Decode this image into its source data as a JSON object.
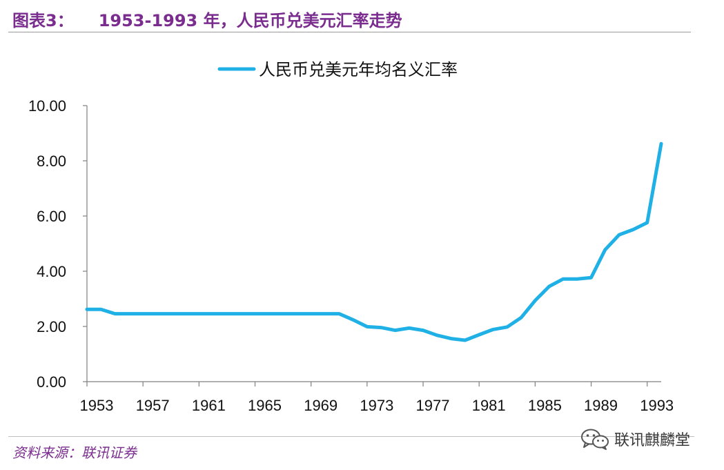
{
  "figure": {
    "label": "图表3：",
    "title": "1953-1993 年，人民币兑美元汇率走势"
  },
  "source": "资料来源：联讯证券",
  "watermark": {
    "icon": "wechat-icon",
    "text": "联讯麒麟堂"
  },
  "colors": {
    "title": "#7a2c8f",
    "series": "#1fb0e6",
    "axis": "#7f7f7f"
  },
  "chart_data": {
    "type": "line",
    "title": "",
    "xlabel": "",
    "ylabel": "",
    "legend_position": "top",
    "grid": false,
    "xlim": [
      1953,
      1994
    ],
    "ylim": [
      0,
      10
    ],
    "x_ticks": [
      "1953",
      "1957",
      "1961",
      "1965",
      "1969",
      "1973",
      "1977",
      "1981",
      "1985",
      "1989",
      "1993"
    ],
    "y_ticks": [
      "0.00",
      "2.00",
      "4.00",
      "6.00",
      "8.00",
      "10.00"
    ],
    "series": [
      {
        "name": "人民币兑美元年均名义汇率",
        "x": [
          1953,
          1954,
          1955,
          1956,
          1957,
          1958,
          1959,
          1960,
          1961,
          1962,
          1963,
          1964,
          1965,
          1966,
          1967,
          1968,
          1969,
          1970,
          1971,
          1972,
          1973,
          1974,
          1975,
          1976,
          1977,
          1978,
          1979,
          1980,
          1981,
          1982,
          1983,
          1984,
          1985,
          1986,
          1987,
          1988,
          1989,
          1990,
          1991,
          1992,
          1993,
          1994
        ],
        "values": [
          2.62,
          2.62,
          2.46,
          2.46,
          2.46,
          2.46,
          2.46,
          2.46,
          2.46,
          2.46,
          2.46,
          2.46,
          2.46,
          2.46,
          2.46,
          2.46,
          2.46,
          2.46,
          2.46,
          2.24,
          1.99,
          1.96,
          1.86,
          1.94,
          1.86,
          1.68,
          1.56,
          1.5,
          1.7,
          1.89,
          1.98,
          2.32,
          2.94,
          3.45,
          3.72,
          3.72,
          3.77,
          4.78,
          5.32,
          5.51,
          5.76,
          8.62
        ]
      }
    ]
  }
}
